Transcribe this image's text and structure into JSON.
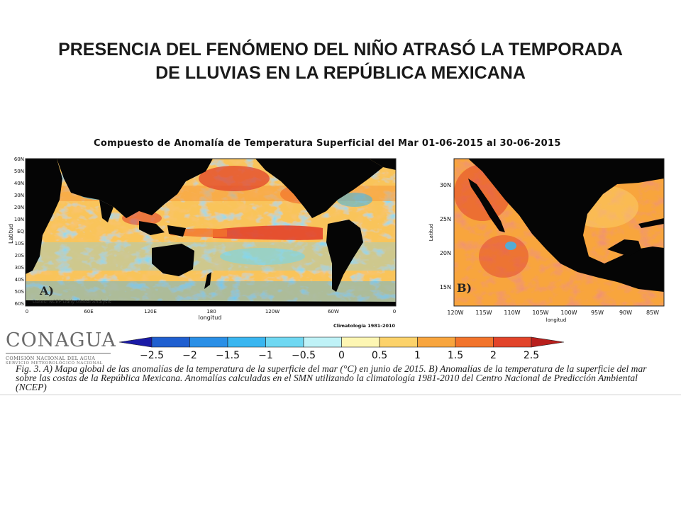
{
  "slide": {
    "title_line1": "PRESENCIA DEL FENÓMENO DEL NIÑO ATRASÓ LA TEMPORADA",
    "title_line2": "DE LLUVIAS EN LA REPÚBLICA MEXICANA"
  },
  "figure": {
    "title": "Compuesto de Anomalía de Temperatura Superficial del Mar   01-06-2015 al 30-06-2015",
    "caption": "Fig. 3. A) Mapa global de las anomalías de la temperatura de la superficie del mar (°C) en junio de 2015. B) Anomalías de la temperatura de la superficie del mar sobre las costas de la República Mexicana. Anomalías calculadas en el SMN utilizando la climatología 1981-2010 del Centro Nacional de Predicción Ambiental (NCEP)"
  },
  "map_a": {
    "panel_label": "A)",
    "source_note": "Datos: NCEP Daily Global Analysis",
    "climatology_note": "Climatología 1981-2010",
    "ylabel": "Latitud",
    "xlabel": "longitud",
    "lat_ticks": [
      "60N",
      "50N",
      "40N",
      "30N",
      "20N",
      "10N",
      "EQ",
      "10S",
      "20S",
      "30S",
      "40S",
      "50S",
      "60S"
    ],
    "lon_ticks": [
      "0",
      "60E",
      "120E",
      "180",
      "120W",
      "60W",
      "0"
    ]
  },
  "map_b": {
    "panel_label": "B)",
    "ylabel": "Latitud",
    "xlabel": "longitud",
    "lat_ticks": [
      "30N",
      "25N",
      "20N",
      "15N"
    ],
    "lon_ticks": [
      "120W",
      "115W",
      "110W",
      "105W",
      "100W",
      "95W",
      "90W",
      "85W"
    ]
  },
  "colorbar": {
    "tick_labels": [
      "−2.5",
      "−2",
      "−1.5",
      "−1",
      "−0.5",
      "0",
      "0.5",
      "1",
      "1.5",
      "2",
      "2.5"
    ],
    "colors": [
      "#1a1aa6",
      "#1f5fd0",
      "#2a8fe6",
      "#39b6f0",
      "#6fd8f2",
      "#bff2f7",
      "#fdf6b3",
      "#fcd26a",
      "#f8a53e",
      "#f2742c",
      "#e2442a",
      "#b81f1c"
    ]
  },
  "logo": {
    "name": "CONAGUA",
    "subtitle1": "COMISIÓN NACIONAL DEL AGUA",
    "subtitle2": "SERVICIO METEOROLÓGICO NACIONAL"
  }
}
